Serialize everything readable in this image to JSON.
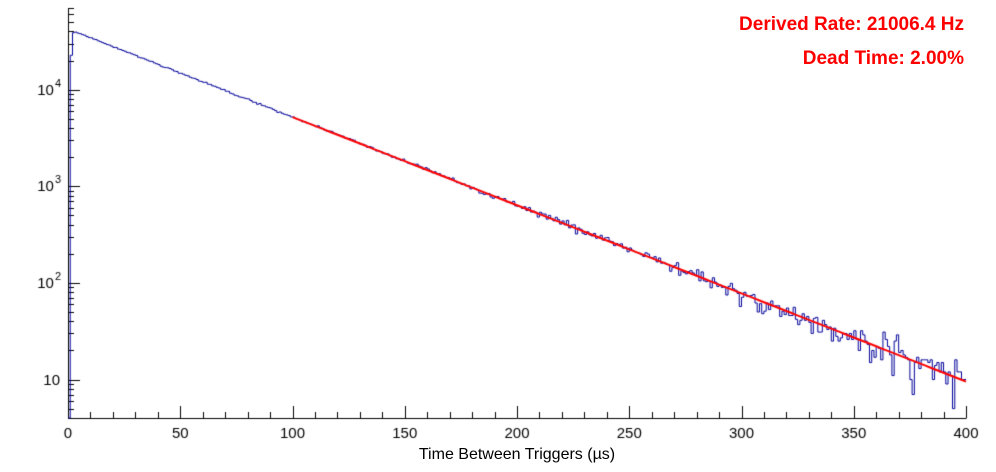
{
  "window": {
    "background": "#ffffff"
  },
  "annotations": {
    "derived_rate_label": "Derived Rate: 21006.4 Hz",
    "dead_time_label": "Dead Time: 2.00%",
    "text_color": "#ff0000"
  },
  "chart_data": {
    "type": "histogram",
    "title": "",
    "xlabel": "Time Between Triggers (µs)",
    "ylabel": "",
    "x_ticks": [
      0,
      50,
      100,
      150,
      200,
      250,
      300,
      350,
      400
    ],
    "x_minor_step": 10,
    "y_major_ticks": [
      10,
      100,
      1000,
      10000
    ],
    "y_tick_labels": [
      {
        "base": "10",
        "exp": ""
      },
      {
        "base": "10",
        "exp": "2"
      },
      {
        "base": "10",
        "exp": "3"
      },
      {
        "base": "10",
        "exp": "4"
      }
    ],
    "xlim": [
      0,
      400
    ],
    "ylim": [
      4,
      70000
    ],
    "ylog": true,
    "grid": false,
    "legend": "none",
    "axis_color": "#000000",
    "histogram": {
      "color": "#000099",
      "line_width": 1,
      "bin_width_us": 1,
      "amplitude_at_t0": 42500,
      "decay_rate_per_us": 0.0210064,
      "rise_profile": [
        0,
        0.55,
        0.96
      ],
      "noise": "poisson",
      "noise_seed": 20064
    },
    "fit": {
      "color": "#ff0000",
      "line_width": 2,
      "range_us": [
        100,
        400
      ],
      "amplitude_at_t0": 42500,
      "decay_rate_per_us": 0.0210064
    },
    "derived_rate_hz": 21006.4,
    "dead_time_percent": 2.0
  }
}
